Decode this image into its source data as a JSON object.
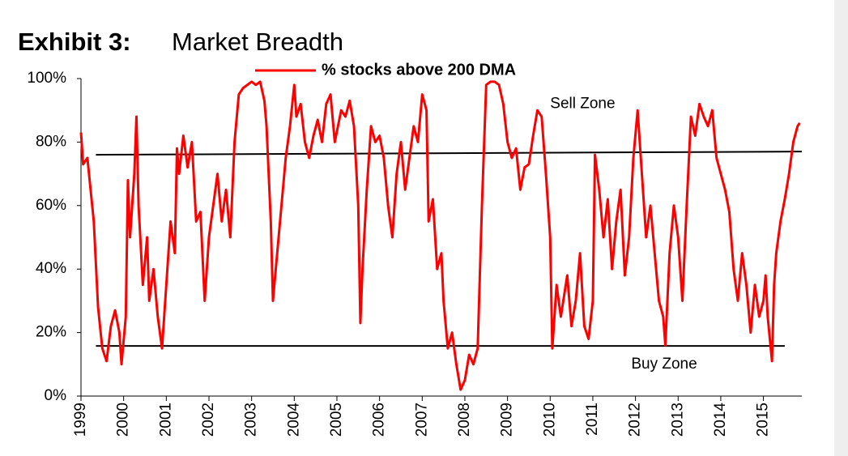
{
  "chart_data": {
    "type": "line",
    "title_prefix": "Exhibit 3:",
    "title": "Market Breadth",
    "x": [
      1999,
      1999.05,
      1999.15,
      1999.3,
      1999.4,
      1999.5,
      1999.6,
      1999.7,
      1999.8,
      1999.9,
      1999.95,
      2000.05,
      2000.1,
      2000.15,
      2000.25,
      2000.3,
      2000.35,
      2000.45,
      2000.55,
      2000.6,
      2000.7,
      2000.8,
      2000.9,
      2001,
      2001.1,
      2001.2,
      2001.25,
      2001.3,
      2001.4,
      2001.5,
      2001.6,
      2001.7,
      2001.8,
      2001.9,
      2002,
      2002.1,
      2002.2,
      2002.3,
      2002.4,
      2002.5,
      2002.6,
      2002.7,
      2002.8,
      2002.9,
      2003,
      2003.1,
      2003.2,
      2003.3,
      2003.35,
      2003.45,
      2003.5,
      2003.6,
      2003.7,
      2003.8,
      2003.9,
      2004,
      2004.05,
      2004.15,
      2004.25,
      2004.35,
      2004.45,
      2004.55,
      2004.65,
      2004.75,
      2004.85,
      2004.95,
      2005.1,
      2005.2,
      2005.3,
      2005.4,
      2005.5,
      2005.55,
      2005.6,
      2005.7,
      2005.8,
      2005.9,
      2006,
      2006.1,
      2006.2,
      2006.3,
      2006.4,
      2006.5,
      2006.6,
      2006.7,
      2006.8,
      2006.9,
      2007,
      2007.1,
      2007.15,
      2007.25,
      2007.35,
      2007.45,
      2007.5,
      2007.6,
      2007.7,
      2007.8,
      2007.9,
      2008,
      2008.1,
      2008.2,
      2008.3,
      2008.4,
      2008.5,
      2008.6,
      2008.7,
      2008.8,
      2008.9,
      2009,
      2009.1,
      2009.2,
      2009.3,
      2009.4,
      2009.5,
      2009.6,
      2009.7,
      2009.8,
      2009.9,
      2010,
      2010.05,
      2010.15,
      2010.25,
      2010.4,
      2010.5,
      2010.6,
      2010.7,
      2010.8,
      2010.9,
      2011,
      2011.05,
      2011.15,
      2011.25,
      2011.35,
      2011.45,
      2011.55,
      2011.65,
      2011.75,
      2011.85,
      2011.95,
      2012.05,
      2012.15,
      2012.25,
      2012.35,
      2012.45,
      2012.55,
      2012.65,
      2012.7,
      2012.8,
      2012.9,
      2013,
      2013.1,
      2013.2,
      2013.3,
      2013.4,
      2013.5,
      2013.6,
      2013.7,
      2013.8,
      2013.9,
      2014,
      2014.1,
      2014.2,
      2014.3,
      2014.4,
      2014.5,
      2014.6,
      2014.7,
      2014.8,
      2014.9,
      2015,
      2015.05,
      2015.1,
      2015.2,
      2015.25,
      2015.3,
      2015.4,
      2015.5,
      2015.6,
      2015.7,
      2015.8,
      2015.85
    ],
    "series": [
      {
        "name": "% stocks above 200 DMA",
        "color": "#ff0000",
        "values": [
          83,
          73,
          75,
          55,
          28,
          15,
          11,
          22,
          27,
          20,
          10,
          25,
          68,
          50,
          70,
          88,
          60,
          35,
          50,
          30,
          40,
          25,
          15,
          35,
          55,
          45,
          78,
          70,
          82,
          72,
          80,
          55,
          58,
          30,
          50,
          60,
          70,
          55,
          65,
          50,
          80,
          95,
          97,
          98,
          99,
          98,
          99,
          93,
          85,
          55,
          30,
          45,
          60,
          75,
          85,
          98,
          88,
          92,
          80,
          75,
          82,
          87,
          80,
          92,
          95,
          80,
          90,
          88,
          93,
          85,
          60,
          23,
          40,
          65,
          85,
          80,
          82,
          75,
          60,
          50,
          70,
          80,
          65,
          75,
          85,
          80,
          95,
          90,
          55,
          62,
          40,
          45,
          30,
          15,
          20,
          10,
          2,
          5,
          13,
          10,
          15,
          60,
          98,
          99,
          99,
          98,
          92,
          80,
          75,
          78,
          65,
          72,
          73,
          82,
          90,
          88,
          70,
          50,
          15,
          35,
          25,
          38,
          22,
          30,
          45,
          22,
          18,
          30,
          76,
          65,
          50,
          62,
          40,
          55,
          65,
          38,
          50,
          75,
          90,
          70,
          50,
          60,
          45,
          30,
          25,
          16,
          45,
          60,
          50,
          30,
          60,
          88,
          82,
          92,
          88,
          85,
          90,
          75,
          70,
          65,
          58,
          40,
          30,
          45,
          35,
          20,
          35,
          25,
          30,
          38,
          25,
          11,
          35,
          45,
          55,
          62,
          70,
          80,
          85,
          86
        ]
      }
    ],
    "reference_lines": [
      {
        "color": "#000000",
        "x": [
          1999.35,
          2015.9
        ],
        "values": [
          76,
          77
        ]
      },
      {
        "color": "#000000",
        "x": [
          1999.35,
          2015.5
        ],
        "values": [
          15.8,
          15.8
        ]
      }
    ],
    "annotations": [
      {
        "text": "Sell Zone",
        "x": 2010,
        "y": 92
      },
      {
        "text": "Buy Zone",
        "x": 2011.9,
        "y": 10
      }
    ],
    "xlim": [
      1999,
      2015.9
    ],
    "ylim": [
      0,
      100
    ],
    "xticks": [
      1999,
      2000,
      2001,
      2002,
      2003,
      2004,
      2005,
      2006,
      2007,
      2008,
      2009,
      2010,
      2011,
      2012,
      2013,
      2014,
      2015
    ],
    "yticks": [
      {
        "value": 0,
        "label": "0%"
      },
      {
        "value": 20,
        "label": "20%"
      },
      {
        "value": 40,
        "label": "40%"
      },
      {
        "value": 60,
        "label": "60%"
      },
      {
        "value": 80,
        "label": "80%"
      },
      {
        "value": 100,
        "label": "100%"
      }
    ],
    "grid": false,
    "legend": "top"
  }
}
